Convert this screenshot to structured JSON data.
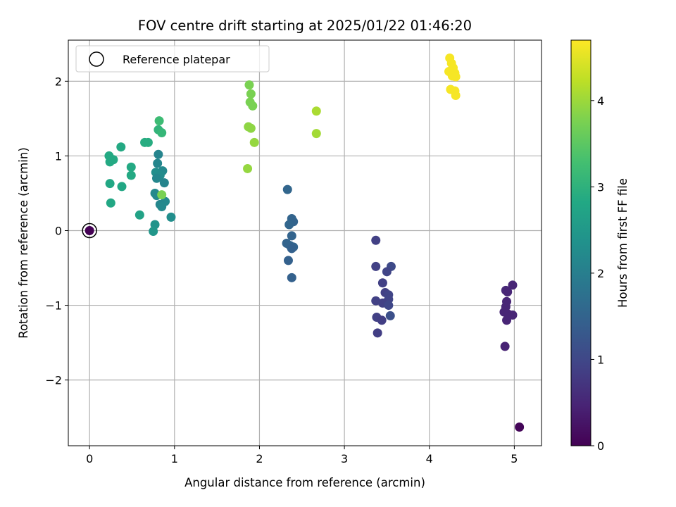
{
  "chart_data": {
    "type": "scatter",
    "title": "FOV centre drift starting at 2025/01/22 01:46:20",
    "xlabel": "Angular distance from reference (arcmin)",
    "ylabel": "Rotation from reference (arcmin)",
    "xlim": [
      -0.25,
      5.32
    ],
    "ylim": [
      -2.88,
      2.55
    ],
    "xticks": [
      0,
      1,
      2,
      3,
      4,
      5
    ],
    "xtick_labels": [
      "0",
      "1",
      "2",
      "3",
      "4",
      "5"
    ],
    "yticks": [
      -2,
      -1,
      0,
      1,
      2
    ],
    "ytick_labels": [
      "−2",
      "−1",
      "0",
      "1",
      "2"
    ],
    "grid": true,
    "legend": {
      "label": "Reference platepar",
      "placement": "top-left"
    },
    "reference_point": {
      "x": 0,
      "y": 0
    },
    "colorbar": {
      "label": "Hours from first FF file",
      "range": [
        0,
        4.7
      ],
      "ticks": [
        0,
        1,
        2,
        3,
        4
      ],
      "tick_labels": [
        "0",
        "1",
        "2",
        "3",
        "4"
      ],
      "colormap": "viridis"
    },
    "points": [
      {
        "x": 0.0,
        "y": 0.0,
        "h": 0.0
      },
      {
        "x": 5.06,
        "y": -2.63,
        "h": 0.05
      },
      {
        "x": 4.89,
        "y": -1.55,
        "h": 0.45
      },
      {
        "x": 4.88,
        "y": -1.09,
        "h": 0.5
      },
      {
        "x": 4.9,
        "y": -0.8,
        "h": 0.55
      },
      {
        "x": 4.98,
        "y": -0.73,
        "h": 0.5
      },
      {
        "x": 4.92,
        "y": -0.82,
        "h": 0.5
      },
      {
        "x": 4.91,
        "y": -0.95,
        "h": 0.5
      },
      {
        "x": 4.9,
        "y": -1.02,
        "h": 0.5
      },
      {
        "x": 4.93,
        "y": -1.12,
        "h": 0.5
      },
      {
        "x": 4.91,
        "y": -1.2,
        "h": 0.5
      },
      {
        "x": 4.98,
        "y": -1.13,
        "h": 0.5
      },
      {
        "x": 3.37,
        "y": -0.13,
        "h": 0.9
      },
      {
        "x": 3.37,
        "y": -0.48,
        "h": 0.9
      },
      {
        "x": 3.55,
        "y": -0.48,
        "h": 1.05
      },
      {
        "x": 3.5,
        "y": -0.55,
        "h": 0.95
      },
      {
        "x": 3.45,
        "y": -0.7,
        "h": 0.9
      },
      {
        "x": 3.48,
        "y": -0.83,
        "h": 0.9
      },
      {
        "x": 3.52,
        "y": -0.86,
        "h": 0.95
      },
      {
        "x": 3.37,
        "y": -0.94,
        "h": 0.9
      },
      {
        "x": 3.52,
        "y": -0.92,
        "h": 0.95
      },
      {
        "x": 3.45,
        "y": -0.97,
        "h": 0.9
      },
      {
        "x": 3.52,
        "y": -1.0,
        "h": 1.0
      },
      {
        "x": 3.54,
        "y": -1.14,
        "h": 1.15
      },
      {
        "x": 3.38,
        "y": -1.16,
        "h": 0.9
      },
      {
        "x": 3.44,
        "y": -1.2,
        "h": 0.85
      },
      {
        "x": 3.39,
        "y": -1.37,
        "h": 0.85
      },
      {
        "x": 2.33,
        "y": 0.55,
        "h": 1.55
      },
      {
        "x": 2.38,
        "y": 0.16,
        "h": 1.5
      },
      {
        "x": 2.4,
        "y": 0.12,
        "h": 1.5
      },
      {
        "x": 2.35,
        "y": 0.08,
        "h": 1.55
      },
      {
        "x": 2.38,
        "y": -0.07,
        "h": 1.5
      },
      {
        "x": 2.32,
        "y": -0.17,
        "h": 1.5
      },
      {
        "x": 2.36,
        "y": -0.2,
        "h": 1.5
      },
      {
        "x": 2.4,
        "y": -0.22,
        "h": 1.5
      },
      {
        "x": 2.38,
        "y": -0.24,
        "h": 1.45
      },
      {
        "x": 2.34,
        "y": -0.4,
        "h": 1.45
      },
      {
        "x": 2.38,
        "y": -0.63,
        "h": 1.45
      },
      {
        "x": 0.81,
        "y": 1.02,
        "h": 2.1
      },
      {
        "x": 0.8,
        "y": 0.9,
        "h": 2.15
      },
      {
        "x": 0.86,
        "y": 0.8,
        "h": 2.2
      },
      {
        "x": 0.78,
        "y": 0.78,
        "h": 2.3
      },
      {
        "x": 0.83,
        "y": 0.74,
        "h": 2.25
      },
      {
        "x": 0.79,
        "y": 0.7,
        "h": 2.15
      },
      {
        "x": 0.88,
        "y": 0.64,
        "h": 2.1
      },
      {
        "x": 0.77,
        "y": 0.5,
        "h": 2.2
      },
      {
        "x": 0.79,
        "y": 0.47,
        "h": 2.2
      },
      {
        "x": 0.89,
        "y": 0.39,
        "h": 2.2
      },
      {
        "x": 0.83,
        "y": 0.35,
        "h": 2.15
      },
      {
        "x": 0.85,
        "y": 0.32,
        "h": 2.2
      },
      {
        "x": 0.96,
        "y": 0.18,
        "h": 2.3
      },
      {
        "x": 0.77,
        "y": 0.08,
        "h": 2.4
      },
      {
        "x": 0.75,
        "y": -0.01,
        "h": 2.45
      },
      {
        "x": 0.59,
        "y": 0.21,
        "h": 2.7
      },
      {
        "x": 0.25,
        "y": 0.37,
        "h": 2.8
      },
      {
        "x": 0.24,
        "y": 0.63,
        "h": 2.8
      },
      {
        "x": 0.38,
        "y": 0.59,
        "h": 2.8
      },
      {
        "x": 0.49,
        "y": 0.74,
        "h": 2.85
      },
      {
        "x": 0.49,
        "y": 0.85,
        "h": 2.85
      },
      {
        "x": 0.24,
        "y": 0.92,
        "h": 2.85
      },
      {
        "x": 0.28,
        "y": 0.95,
        "h": 2.85
      },
      {
        "x": 0.23,
        "y": 1.0,
        "h": 2.85
      },
      {
        "x": 0.37,
        "y": 1.12,
        "h": 2.85
      },
      {
        "x": 0.65,
        "y": 1.18,
        "h": 2.9
      },
      {
        "x": 0.69,
        "y": 1.18,
        "h": 2.9
      },
      {
        "x": 0.81,
        "y": 1.35,
        "h": 3.05
      },
      {
        "x": 0.85,
        "y": 1.31,
        "h": 3.1
      },
      {
        "x": 0.82,
        "y": 1.47,
        "h": 3.2
      },
      {
        "x": 0.85,
        "y": 0.48,
        "h": 3.75
      },
      {
        "x": 1.86,
        "y": 0.83,
        "h": 3.95
      },
      {
        "x": 1.94,
        "y": 1.18,
        "h": 3.95
      },
      {
        "x": 1.87,
        "y": 1.39,
        "h": 3.9
      },
      {
        "x": 1.9,
        "y": 1.37,
        "h": 3.9
      },
      {
        "x": 1.92,
        "y": 1.67,
        "h": 3.75
      },
      {
        "x": 1.89,
        "y": 1.72,
        "h": 3.75
      },
      {
        "x": 1.9,
        "y": 1.83,
        "h": 3.75
      },
      {
        "x": 1.88,
        "y": 1.95,
        "h": 3.75
      },
      {
        "x": 2.67,
        "y": 1.3,
        "h": 4.05
      },
      {
        "x": 2.67,
        "y": 1.6,
        "h": 4.1
      },
      {
        "x": 4.24,
        "y": 2.31,
        "h": 4.65
      },
      {
        "x": 4.26,
        "y": 2.24,
        "h": 4.65
      },
      {
        "x": 4.28,
        "y": 2.18,
        "h": 4.65
      },
      {
        "x": 4.23,
        "y": 2.13,
        "h": 4.65
      },
      {
        "x": 4.3,
        "y": 2.11,
        "h": 4.65
      },
      {
        "x": 4.27,
        "y": 2.07,
        "h": 4.65
      },
      {
        "x": 4.31,
        "y": 2.06,
        "h": 4.65
      },
      {
        "x": 4.25,
        "y": 1.89,
        "h": 4.65
      },
      {
        "x": 4.3,
        "y": 1.87,
        "h": 4.65
      },
      {
        "x": 4.31,
        "y": 1.81,
        "h": 4.65
      }
    ]
  }
}
